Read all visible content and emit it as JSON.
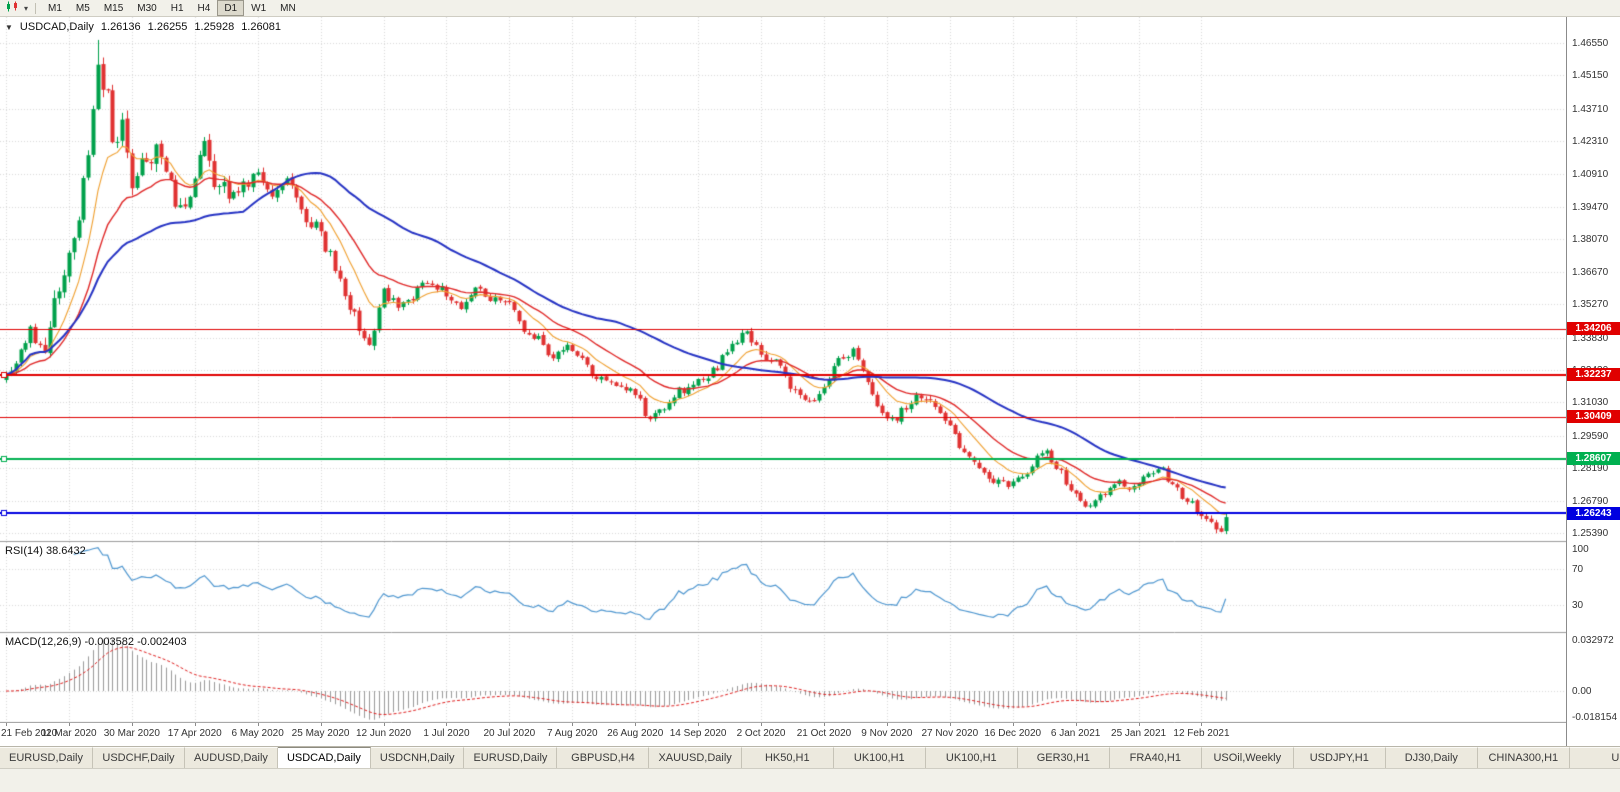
{
  "toolbar": {
    "timeframes": [
      "M1",
      "M5",
      "M15",
      "M30",
      "H1",
      "H4",
      "D1",
      "W1",
      "MN"
    ],
    "active_timeframe": "D1",
    "icons": {
      "chart_type": "candlestick-chart-icon",
      "dropdown": "▾"
    }
  },
  "chart_data": {
    "type": "candlestick",
    "symbol": "USDCAD",
    "timeframe": "Daily",
    "title": {
      "collapse_icon": "▼",
      "symbol": "USDCAD,Daily",
      "open": "1.26136",
      "high": "1.26255",
      "low": "1.25928",
      "close": "1.26081"
    },
    "price_axis": {
      "min": 1.2505,
      "max": 1.4767,
      "ticks": [
        "1.46550",
        "1.45150",
        "1.43710",
        "1.42310",
        "1.40910",
        "1.39470",
        "1.38070",
        "1.36670",
        "1.35270",
        "1.33830",
        "1.32430",
        "1.31030",
        "1.29590",
        "1.28190",
        "1.26790",
        "1.25390"
      ]
    },
    "date_ticks": [
      "21 Feb 2020",
      "11 Mar 2020",
      "30 Mar 2020",
      "17 Apr 2020",
      "6 May 2020",
      "25 May 2020",
      "12 Jun 2020",
      "1 Jul 2020",
      "20 Jul 2020",
      "7 Aug 2020",
      "26 Aug 2020",
      "14 Sep 2020",
      "2 Oct 2020",
      "21 Oct 2020",
      "9 Nov 2020",
      "27 Nov 2020",
      "16 Dec 2020",
      "6 Jan 2021",
      "25 Jan 2021",
      "12 Feb 2021"
    ],
    "candles_per_tick": 13,
    "peak_index": 19,
    "peak_high": 1.4668,
    "last_close": 1.26081,
    "close_path_anchors": [
      [
        0,
        1.3225
      ],
      [
        2,
        1.329
      ],
      [
        5,
        1.3405
      ],
      [
        8,
        1.333
      ],
      [
        11,
        1.362
      ],
      [
        13,
        1.3755
      ],
      [
        15,
        1.393
      ],
      [
        17,
        1.418
      ],
      [
        19,
        1.456
      ],
      [
        20,
        1.448
      ],
      [
        21,
        1.44
      ],
      [
        22,
        1.419
      ],
      [
        24,
        1.429
      ],
      [
        26,
        1.406
      ],
      [
        28,
        1.415
      ],
      [
        31,
        1.42
      ],
      [
        34,
        1.402
      ],
      [
        37,
        1.394
      ],
      [
        39,
        1.407
      ],
      [
        41,
        1.42
      ],
      [
        43,
        1.408
      ],
      [
        46,
        1.399
      ],
      [
        49,
        1.406
      ],
      [
        52,
        1.407
      ],
      [
        55,
        1.398
      ],
      [
        58,
        1.408
      ],
      [
        61,
        1.393
      ],
      [
        64,
        1.386
      ],
      [
        66,
        1.377
      ],
      [
        69,
        1.365
      ],
      [
        72,
        1.347
      ],
      [
        75,
        1.336
      ],
      [
        78,
        1.358
      ],
      [
        81,
        1.352
      ],
      [
        84,
        1.356
      ],
      [
        87,
        1.363
      ],
      [
        89,
        1.36
      ],
      [
        91,
        1.357
      ],
      [
        94,
        1.352
      ],
      [
        97,
        1.359
      ],
      [
        100,
        1.355
      ],
      [
        104,
        1.3525
      ],
      [
        107,
        1.341
      ],
      [
        110,
        1.3375
      ],
      [
        113,
        1.33
      ],
      [
        116,
        1.3345
      ],
      [
        119,
        1.328
      ],
      [
        122,
        1.3215
      ],
      [
        125,
        1.3185
      ],
      [
        128,
        1.316
      ],
      [
        131,
        1.312
      ],
      [
        133,
        1.301
      ],
      [
        136,
        1.309
      ],
      [
        139,
        1.3155
      ],
      [
        142,
        1.3175
      ],
      [
        145,
        1.3205
      ],
      [
        148,
        1.329
      ],
      [
        151,
        1.337
      ],
      [
        153,
        1.34
      ],
      [
        155,
        1.334
      ],
      [
        157,
        1.329
      ],
      [
        160,
        1.326
      ],
      [
        163,
        1.314
      ],
      [
        166,
        1.312
      ],
      [
        168,
        1.3135
      ],
      [
        171,
        1.324
      ],
      [
        173,
        1.331
      ],
      [
        175,
        1.332
      ],
      [
        178,
        1.317
      ],
      [
        181,
        1.305
      ],
      [
        183,
        1.302
      ],
      [
        186,
        1.309
      ],
      [
        189,
        1.313
      ],
      [
        192,
        1.308
      ],
      [
        195,
        1.2985
      ],
      [
        198,
        1.289
      ],
      [
        201,
        1.2805
      ],
      [
        204,
        1.2775
      ],
      [
        207,
        1.2745
      ],
      [
        210,
        1.2765
      ],
      [
        213,
        1.2855
      ],
      [
        215,
        1.288
      ],
      [
        218,
        1.28
      ],
      [
        221,
        1.269
      ],
      [
        224,
        1.2645
      ],
      [
        227,
        1.2715
      ],
      [
        230,
        1.276
      ],
      [
        233,
        1.273
      ],
      [
        236,
        1.279
      ],
      [
        238,
        1.2835
      ],
      [
        240,
        1.2775
      ],
      [
        243,
        1.2695
      ],
      [
        246,
        1.2645
      ],
      [
        248,
        1.262
      ],
      [
        250,
        1.2555
      ],
      [
        251,
        1.2545
      ],
      [
        252,
        1.2608
      ]
    ],
    "horizontal_lines": [
      {
        "price": 1.34206,
        "label": "1.34206",
        "color": "#e00000",
        "width": 1,
        "handle": false
      },
      {
        "price": 1.32237,
        "label": "1.32237",
        "color": "#e00000",
        "width": 2,
        "handle": true
      },
      {
        "price": 1.30409,
        "label": "1.30409",
        "color": "#e00000",
        "width": 1,
        "handle": false
      },
      {
        "price": 1.28607,
        "label": "1.28607",
        "color": "#00b050",
        "width": 2,
        "handle": true
      },
      {
        "price": 1.26243,
        "label": "1.26243",
        "color": "#0000e0",
        "width": 2,
        "handle": true
      }
    ],
    "colors": {
      "candle_up": "#00a14b",
      "candle_down": "#e03232",
      "grid": "#d9d9d9",
      "background": "#ffffff"
    },
    "indicators": {
      "ma": [
        {
          "type": "ema",
          "period": 10,
          "color": "#f0a030"
        },
        {
          "type": "ema",
          "period": 21,
          "color": "#e02828"
        },
        {
          "type": "sma",
          "period": 50,
          "color": "#2633c4"
        }
      ],
      "rsi": {
        "label": "RSI(14) 38.6432",
        "period": 14,
        "value": 38.6432,
        "levels": [
          70,
          30
        ],
        "axis": [
          "100",
          "70",
          "30"
        ],
        "color": "#4f97d0"
      },
      "macd": {
        "label": "MACD(12,26,9) -0.003582 -0.002403",
        "params": "12,26,9",
        "macd_value": -0.003582,
        "signal_value": -0.002403,
        "axis_max": "0.032972",
        "axis_zero": "0.00",
        "axis_min": "-0.018154",
        "range": [
          -0.018154,
          0.032972
        ],
        "histogram_color": "#9a9a9a",
        "signal_color": "#e02020"
      }
    }
  },
  "tabbar": {
    "active_index": 3,
    "tabs": [
      "EURUSD,Daily",
      "USDCHF,Daily",
      "AUDUSD,Daily",
      "USDCAD,Daily",
      "USDCNH,Daily",
      "EURUSD,Daily",
      "GBPUSD,H4",
      "XAUUSD,Daily",
      "HK50,H1",
      "UK100,H1",
      "UK100,H1",
      "GER30,H1",
      "FRA40,H1",
      "USOil,Weekly",
      "USDJPY,H1",
      "DJ30,Daily",
      "CHINA300,H1",
      "U"
    ]
  }
}
